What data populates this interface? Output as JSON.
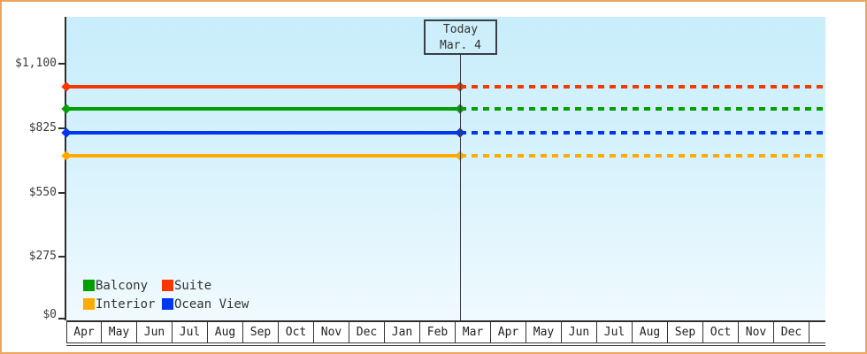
{
  "chart_data": {
    "type": "line",
    "title": "",
    "x_categories": [
      "Apr",
      "May",
      "Jun",
      "Jul",
      "Aug",
      "Sep",
      "Oct",
      "Nov",
      "Dec",
      "Jan",
      "Feb",
      "Mar",
      "Apr",
      "May",
      "Jun",
      "Jul",
      "Aug",
      "Sep",
      "Oct",
      "Nov",
      "Dec"
    ],
    "y_tick_labels": [
      "$1,100",
      "$825",
      "$550",
      "$275",
      "$0"
    ],
    "ylim": [
      0,
      1300
    ],
    "y_tick_step": 275,
    "grid": false,
    "legend_position": "inside-bottom-left",
    "series": [
      {
        "name": "Suite",
        "color": "#f53800",
        "price_estimate": 1005,
        "shape": "flat line, solid before today, dashed after"
      },
      {
        "name": "Balcony",
        "color": "#00a000",
        "price_estimate": 910,
        "shape": "flat line, solid before today, dashed after"
      },
      {
        "name": "Ocean View",
        "color": "#0036ee",
        "price_estimate": 810,
        "shape": "flat line, solid before today, dashed after"
      },
      {
        "name": "Interior",
        "color": "#ffaa00",
        "price_estimate": 710,
        "shape": "flat line, solid before today, dashed after"
      }
    ],
    "annotation": {
      "line1": "Today",
      "line2": "Mar. 4",
      "x_month_index": 11
    }
  },
  "today_box": {
    "line1": "Today",
    "line2": "Mar. 4"
  },
  "legend": {
    "items": [
      {
        "label": "Balcony",
        "color": "#00a000"
      },
      {
        "label": "Suite",
        "color": "#f53800"
      },
      {
        "label": "Interior",
        "color": "#ffaa00"
      },
      {
        "label": "Ocean View",
        "color": "#0036ee"
      }
    ]
  },
  "colors": {
    "page_border": "#eda55e",
    "plot_background_top": "#c8edfb",
    "plot_background_bottom": "#f0fafe",
    "axis": "#2e2e2e",
    "text": "#333333"
  }
}
